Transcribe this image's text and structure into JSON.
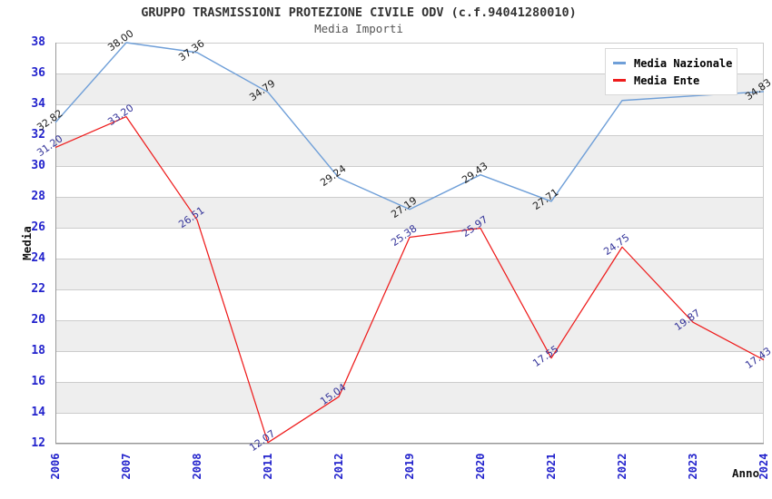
{
  "header": {
    "title": "GRUPPO TRASMISSIONI PROTEZIONE CIVILE ODV (c.f.94041280010)",
    "subtitle": "Media Importi"
  },
  "axes": {
    "y_label": "Media",
    "x_label": "Anno",
    "y_ticks": [
      38,
      36,
      34,
      32,
      30,
      28,
      26,
      24,
      22,
      20,
      18,
      16,
      14,
      12
    ],
    "x_ticks": [
      "2006",
      "2007",
      "2008",
      "2011",
      "2012",
      "2019",
      "2020",
      "2021",
      "2022",
      "2023",
      "2024"
    ],
    "tick_color": "#2222cc"
  },
  "legend": {
    "position": "top-right",
    "items": [
      {
        "label": "Media Nazionale",
        "color": "#6f9fd8"
      },
      {
        "label": "Media Ente",
        "color": "#ee1c1c"
      }
    ]
  },
  "colors": {
    "band_gray": "#eeeeee",
    "gridline": "#cccccc",
    "axis_border": "#999999",
    "title": "#333333",
    "subtitle": "#555555",
    "nazionale_line": "#6f9fd8",
    "ente_line": "#ee1c1c",
    "nazionale_point_label": "#1a1a1a",
    "ente_point_label": "#333399"
  },
  "chart_data": {
    "type": "line",
    "title": "GRUPPO TRASMISSIONI PROTEZIONE CIVILE ODV (c.f.94041280010)",
    "subtitle": "Media Importi",
    "xlabel": "Anno",
    "ylabel": "Media",
    "ylim": [
      12,
      38
    ],
    "grid": true,
    "legend_position": "top-right",
    "categories": [
      "2006",
      "2007",
      "2008",
      "2011",
      "2012",
      "2019",
      "2020",
      "2021",
      "2022",
      "2023",
      "2024"
    ],
    "series": [
      {
        "name": "Media Nazionale",
        "color": "#6f9fd8",
        "label_color": "#1a1a1a",
        "values": [
          32.82,
          38.0,
          37.36,
          34.79,
          29.24,
          27.19,
          29.43,
          27.71,
          34.25,
          34.55,
          34.83
        ],
        "labels": [
          "32.82",
          "38.00",
          "37.36",
          "34.79",
          "29.24",
          "27.19",
          "29.43",
          "27.71",
          "",
          "",
          "34.83"
        ]
      },
      {
        "name": "Media Ente",
        "color": "#ee1c1c",
        "label_color": "#333399",
        "values": [
          31.2,
          33.2,
          26.51,
          12.07,
          15.04,
          25.38,
          25.97,
          17.55,
          24.75,
          19.87,
          17.43
        ],
        "labels": [
          "31.20",
          "33.20",
          "26.51",
          "12.07",
          "15.04",
          "25.38",
          "25.97",
          "17.55",
          "24.75",
          "19.87",
          "17.43"
        ]
      }
    ]
  }
}
